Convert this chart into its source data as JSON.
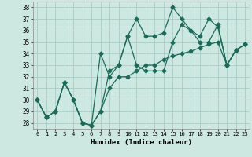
{
  "xlabel": "Humidex (Indice chaleur)",
  "bg_color": "#cce8e0",
  "grid_color": "#aaccC4",
  "line_color": "#1a6b5a",
  "xlim": [
    -0.5,
    23.5
  ],
  "ylim": [
    27.5,
    38.5
  ],
  "yticks": [
    28,
    29,
    30,
    31,
    32,
    33,
    34,
    35,
    36,
    37,
    38
  ],
  "xticks": [
    0,
    1,
    2,
    3,
    4,
    5,
    6,
    7,
    8,
    9,
    10,
    11,
    12,
    13,
    14,
    15,
    16,
    17,
    18,
    19,
    20,
    21,
    22,
    23
  ],
  "series1_y": [
    30,
    28.5,
    29,
    31.5,
    30,
    28,
    27.8,
    29,
    32.5,
    33,
    35.5,
    37,
    35.5,
    35.5,
    35.8,
    38,
    37,
    36,
    35.5,
    37,
    36.3,
    33,
    34.3,
    34.8
  ],
  "series2_y": [
    30,
    28.5,
    29,
    31.5,
    30,
    28,
    27.8,
    29,
    31,
    32,
    32,
    32.5,
    33,
    33,
    33.5,
    33.8,
    34,
    34.2,
    34.5,
    34.8,
    35,
    33,
    34.3,
    34.8
  ],
  "series3_y": [
    30,
    28.5,
    29,
    31.5,
    30,
    28,
    27.8,
    34,
    32,
    33,
    35.5,
    33,
    32.5,
    32.5,
    32.5,
    35,
    36.5,
    36,
    35,
    35,
    36.5,
    33,
    34.3,
    34.8
  ]
}
